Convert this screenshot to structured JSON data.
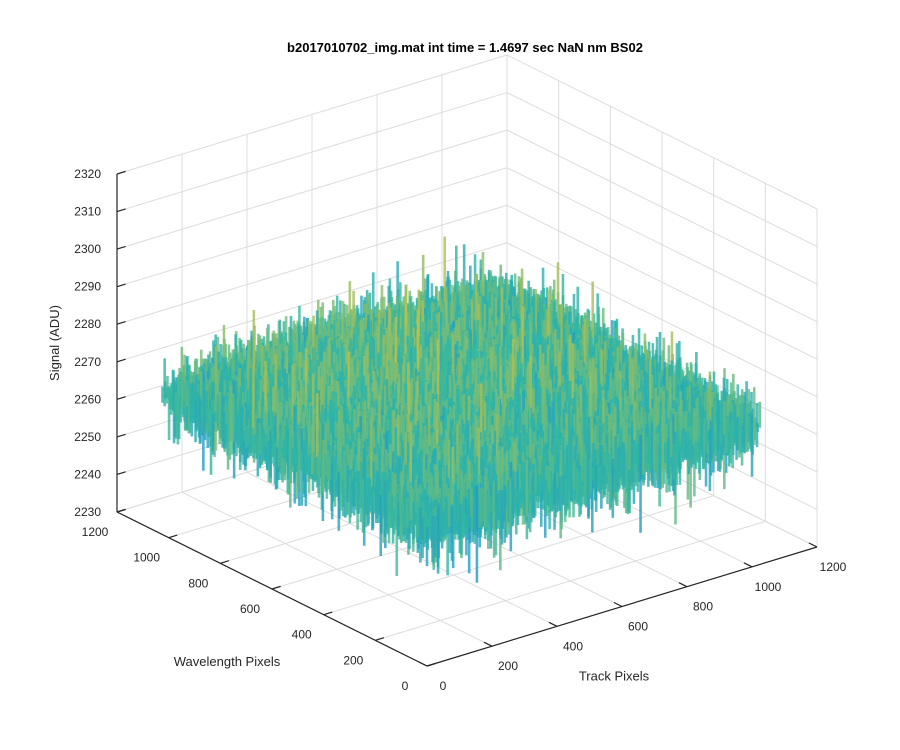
{
  "chart_data": {
    "type": "surface",
    "title": "b2017010702_img.mat int time = 1.4697 sec  NaN nm BS02",
    "xlabel": "Track Pixels",
    "ylabel": "Wavelength Pixels",
    "zlabel": "Signal (ADU)",
    "xlim": [
      0,
      1200
    ],
    "ylim": [
      0,
      1200
    ],
    "zlim": [
      2230,
      2320
    ],
    "xticks": [
      "0",
      "200",
      "400",
      "600",
      "800",
      "1000",
      "1200"
    ],
    "yticks": [
      "0",
      "200",
      "400",
      "600",
      "800",
      "1000",
      "1200"
    ],
    "zticks": [
      "2230",
      "2240",
      "2250",
      "2260",
      "2270",
      "2280",
      "2290",
      "2300",
      "2310",
      "2320"
    ],
    "grid": true,
    "colormap": "parula",
    "surface_extent": {
      "x": [
        0,
        1024
      ],
      "y": [
        0,
        1024
      ]
    },
    "signal_mean": 2267,
    "signal_typical_min": 2240,
    "signal_typical_max": 2295,
    "colors": {
      "low": "#1f8fd6",
      "mid": "#2fb7a6",
      "high": "#d7c23a"
    }
  }
}
